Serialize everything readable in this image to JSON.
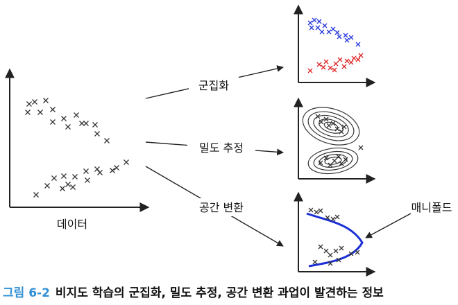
{
  "diagram": {
    "data_label": "데이터",
    "processes": [
      {
        "label": "군집화"
      },
      {
        "label": "밀도 추정"
      },
      {
        "label": "공간 변환"
      }
    ],
    "manifold_label": "매니폴드",
    "colors": {
      "axis": "#222222",
      "marker": "#333333",
      "cluster_a": "#2233dd",
      "cluster_b": "#dd2222",
      "manifold_curve": "#1a2fd6",
      "contour": "#333333"
    }
  },
  "caption": {
    "number": "그림 6-2",
    "text": "비지도 학습의 군집화, 밀도 추정, 공간 변환 과업이 발견하는 정보"
  }
}
